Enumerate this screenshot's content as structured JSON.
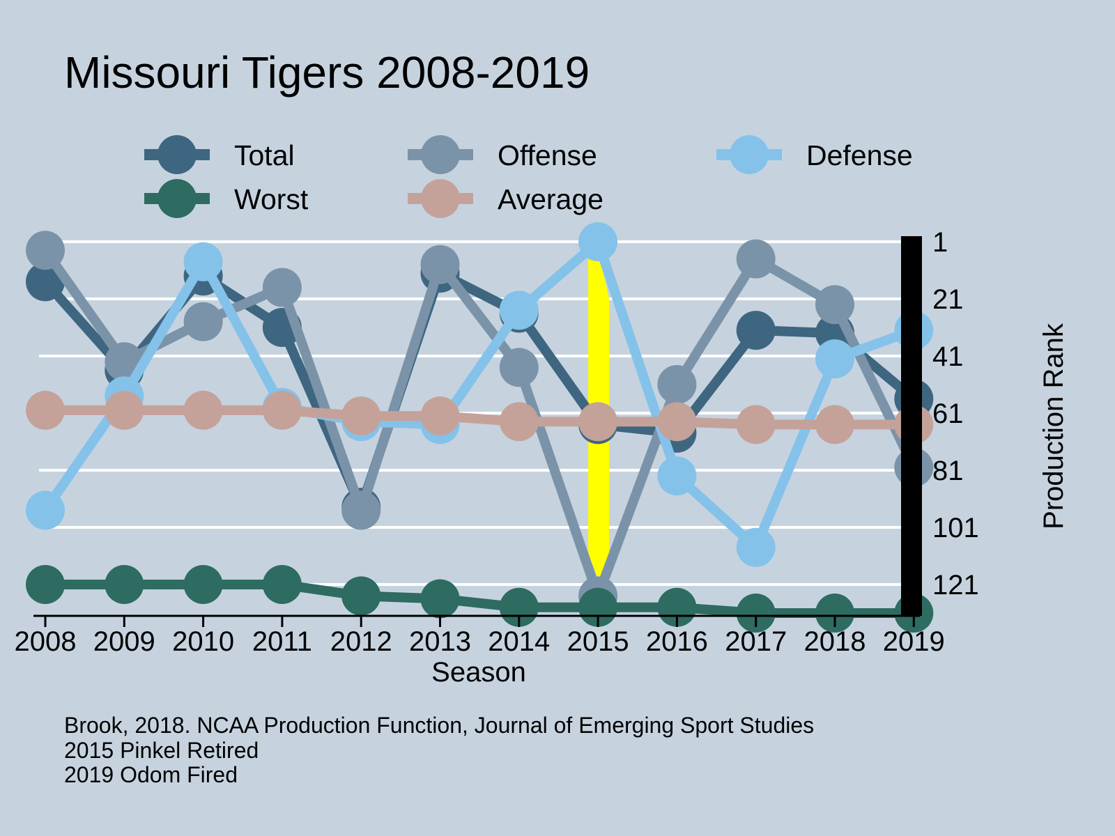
{
  "chart_data": {
    "type": "line",
    "title": "Missouri Tigers 2008-2019",
    "xlabel": "Season",
    "ylabel": "Production Rank",
    "y_axis_side": "right",
    "y_reversed": true,
    "ylim": [
      1,
      130
    ],
    "yticks": [
      1,
      21,
      41,
      61,
      81,
      101,
      121
    ],
    "categories": [
      "2008",
      "2009",
      "2010",
      "2011",
      "2012",
      "2013",
      "2014",
      "2015",
      "2016",
      "2017",
      "2018",
      "2019"
    ],
    "grid": true,
    "legend_position": "top",
    "series": [
      {
        "name": "Total",
        "color": "#3e6680",
        "values": [
          15,
          46,
          13,
          31,
          94,
          12,
          26,
          65,
          68,
          32,
          33,
          56
        ]
      },
      {
        "name": "Offense",
        "color": "#7b93a8",
        "values": [
          4,
          43,
          29,
          17,
          95,
          9,
          45,
          125,
          51,
          7,
          23,
          80
        ]
      },
      {
        "name": "Defense",
        "color": "#84c2ea",
        "values": [
          95,
          55,
          8,
          59,
          64,
          65,
          25,
          1,
          83,
          108,
          42,
          32
        ]
      },
      {
        "name": "Worst",
        "color": "#2e6b61",
        "values": [
          121,
          121,
          121,
          121,
          125,
          126,
          129,
          129,
          129,
          131,
          131,
          131
        ]
      },
      {
        "name": "Average",
        "color": "#c4a29a",
        "values": [
          60,
          60,
          60,
          60,
          62,
          62,
          64,
          64,
          64,
          65,
          65,
          65
        ]
      }
    ],
    "highlight": {
      "season": "2015",
      "color": "#ffff00",
      "from_series": "Defense",
      "to_series": "Offense"
    },
    "captions": [
      "Brook, 2018. NCAA Production Function, Journal of Emerging Sport Studies",
      "2015 Pinkel Retired",
      "2019 Odom Fired"
    ]
  }
}
